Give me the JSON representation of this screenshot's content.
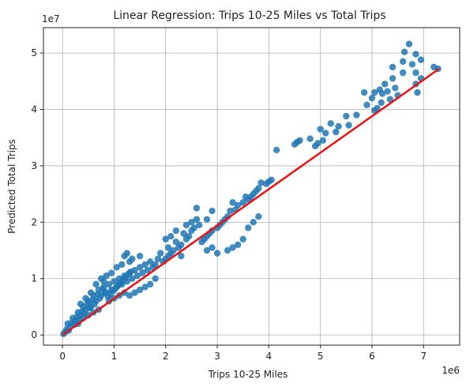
{
  "chart_data": {
    "type": "scatter",
    "title": "Linear Regression: Trips 10-25 Miles vs Total Trips",
    "xlabel": "Trips 10-25 Miles",
    "ylabel": "Predicted Total Trips",
    "x_offset_label": "1e6",
    "y_offset_label": "1e7",
    "xlim": [
      -0.37,
      7.7
    ],
    "ylim": [
      -0.18,
      5.45
    ],
    "x_ticks": [
      0,
      1,
      2,
      3,
      4,
      5,
      6,
      7
    ],
    "x_tick_labels": [
      "0",
      "1",
      "2",
      "3",
      "4",
      "5",
      "6",
      "7"
    ],
    "y_ticks": [
      0,
      1,
      2,
      3,
      4,
      5
    ],
    "y_tick_labels": [
      "0",
      "1",
      "2",
      "3",
      "4",
      "5"
    ],
    "grid": true,
    "colors": {
      "points": "#1f77b4",
      "line": "#ee1111"
    },
    "regression_line": {
      "x": [
        0,
        7.3
      ],
      "y": [
        0,
        4.72
      ]
    },
    "points": [
      [
        6.72,
        5.16
      ],
      [
        6.63,
        5.02
      ],
      [
        6.85,
        4.98
      ],
      [
        6.95,
        4.88
      ],
      [
        7.2,
        4.75
      ],
      [
        7.28,
        4.72
      ],
      [
        6.85,
        4.65
      ],
      [
        6.95,
        4.55
      ],
      [
        6.6,
        4.85
      ],
      [
        6.78,
        4.8
      ],
      [
        6.4,
        4.75
      ],
      [
        6.6,
        4.65
      ],
      [
        6.4,
        4.55
      ],
      [
        6.15,
        4.35
      ],
      [
        6.25,
        4.45
      ],
      [
        6.05,
        4.3
      ],
      [
        6.45,
        4.38
      ],
      [
        6.5,
        4.25
      ],
      [
        6.35,
        4.18
      ],
      [
        6.2,
        4.28
      ],
      [
        6.3,
        4.32
      ],
      [
        6.0,
        4.2
      ],
      [
        6.85,
        4.45
      ],
      [
        6.88,
        4.3
      ],
      [
        5.9,
        4.08
      ],
      [
        5.85,
        4.3
      ],
      [
        6.1,
        4.02
      ],
      [
        6.05,
        3.98
      ],
      [
        6.18,
        4.12
      ],
      [
        5.7,
        3.9
      ],
      [
        5.55,
        3.72
      ],
      [
        5.5,
        3.88
      ],
      [
        5.35,
        3.7
      ],
      [
        5.3,
        3.6
      ],
      [
        5.2,
        3.75
      ],
      [
        5.1,
        3.58
      ],
      [
        5.05,
        3.45
      ],
      [
        4.95,
        3.4
      ],
      [
        5.0,
        3.65
      ],
      [
        4.6,
        3.45
      ],
      [
        4.9,
        3.35
      ],
      [
        4.8,
        3.48
      ],
      [
        4.5,
        3.38
      ],
      [
        4.55,
        3.42
      ],
      [
        4.15,
        3.28
      ],
      [
        4.05,
        2.75
      ],
      [
        4.0,
        2.72
      ],
      [
        3.95,
        2.68
      ],
      [
        3.85,
        2.7
      ],
      [
        3.8,
        2.6
      ],
      [
        3.75,
        2.55
      ],
      [
        3.7,
        2.5
      ],
      [
        3.65,
        2.45
      ],
      [
        3.6,
        2.4
      ],
      [
        3.55,
        2.45
      ],
      [
        3.5,
        2.35
      ],
      [
        3.4,
        2.3
      ],
      [
        3.35,
        2.22
      ],
      [
        3.3,
        2.35
      ],
      [
        3.25,
        2.2
      ],
      [
        3.2,
        2.1
      ],
      [
        3.15,
        2.05
      ],
      [
        3.1,
        2.0
      ],
      [
        3.05,
        1.95
      ],
      [
        3.0,
        1.9
      ],
      [
        2.9,
        1.85
      ],
      [
        2.85,
        1.8
      ],
      [
        2.8,
        1.75
      ],
      [
        2.75,
        1.7
      ],
      [
        2.7,
        1.65
      ],
      [
        3.6,
        1.9
      ],
      [
        3.4,
        1.6
      ],
      [
        3.3,
        1.55
      ],
      [
        3.2,
        1.5
      ],
      [
        3.0,
        1.45
      ],
      [
        2.9,
        1.55
      ],
      [
        2.8,
        1.5
      ],
      [
        3.7,
        2.0
      ],
      [
        3.8,
        2.1
      ],
      [
        3.5,
        1.7
      ],
      [
        2.65,
        1.95
      ],
      [
        2.6,
        2.05
      ],
      [
        2.55,
        1.9
      ],
      [
        2.5,
        1.85
      ],
      [
        2.45,
        1.75
      ],
      [
        2.4,
        1.7
      ],
      [
        2.35,
        1.8
      ],
      [
        2.3,
        1.6
      ],
      [
        2.25,
        1.55
      ],
      [
        2.2,
        1.65
      ],
      [
        2.15,
        1.5
      ],
      [
        2.1,
        1.45
      ],
      [
        2.05,
        1.4
      ],
      [
        2.0,
        1.35
      ],
      [
        1.95,
        1.3
      ],
      [
        1.9,
        1.45
      ],
      [
        1.85,
        1.35
      ],
      [
        1.8,
        1.25
      ],
      [
        1.75,
        1.2
      ],
      [
        1.7,
        1.3
      ],
      [
        2.0,
        1.7
      ],
      [
        2.1,
        1.75
      ],
      [
        2.2,
        1.85
      ],
      [
        2.5,
        2.0
      ],
      [
        2.4,
        1.95
      ],
      [
        2.6,
        2.25
      ],
      [
        2.8,
        2.05
      ],
      [
        2.9,
        2.2
      ],
      [
        2.05,
        1.55
      ],
      [
        2.3,
        1.4
      ],
      [
        1.65,
        1.15
      ],
      [
        1.6,
        1.25
      ],
      [
        1.55,
        1.1
      ],
      [
        1.5,
        1.2
      ],
      [
        1.45,
        1.05
      ],
      [
        1.4,
        1.15
      ],
      [
        1.35,
        1.0
      ],
      [
        1.3,
        1.1
      ],
      [
        1.25,
        0.95
      ],
      [
        1.2,
        1.05
      ],
      [
        1.15,
        0.9
      ],
      [
        1.1,
        1.0
      ],
      [
        1.05,
        0.85
      ],
      [
        1.0,
        0.95
      ],
      [
        0.95,
        0.8
      ],
      [
        0.9,
        0.9
      ],
      [
        0.85,
        0.75
      ],
      [
        0.8,
        0.85
      ],
      [
        0.75,
        0.7
      ],
      [
        0.7,
        0.8
      ],
      [
        1.6,
        0.85
      ],
      [
        1.5,
        0.8
      ],
      [
        1.4,
        0.75
      ],
      [
        1.3,
        0.7
      ],
      [
        1.2,
        0.75
      ],
      [
        1.7,
        0.9
      ],
      [
        1.8,
        1.0
      ],
      [
        1.1,
        0.7
      ],
      [
        1.0,
        0.65
      ],
      [
        0.9,
        0.6
      ],
      [
        1.2,
        1.4
      ],
      [
        1.3,
        1.3
      ],
      [
        1.15,
        1.25
      ],
      [
        1.05,
        1.2
      ],
      [
        0.95,
        1.1
      ],
      [
        0.85,
        1.05
      ],
      [
        1.25,
        1.45
      ],
      [
        0.8,
        0.95
      ],
      [
        1.35,
        1.35
      ],
      [
        1.5,
        1.4
      ],
      [
        0.65,
        0.6
      ],
      [
        0.6,
        0.7
      ],
      [
        0.55,
        0.5
      ],
      [
        0.5,
        0.6
      ],
      [
        0.45,
        0.45
      ],
      [
        0.4,
        0.5
      ],
      [
        0.35,
        0.35
      ],
      [
        0.3,
        0.4
      ],
      [
        0.25,
        0.25
      ],
      [
        0.2,
        0.3
      ],
      [
        0.15,
        0.15
      ],
      [
        0.1,
        0.2
      ],
      [
        0.05,
        0.05
      ],
      [
        0.02,
        0.02
      ],
      [
        0.08,
        0.1
      ],
      [
        0.12,
        0.08
      ],
      [
        0.18,
        0.22
      ],
      [
        0.22,
        0.18
      ],
      [
        0.28,
        0.32
      ],
      [
        0.32,
        0.28
      ],
      [
        0.38,
        0.42
      ],
      [
        0.42,
        0.38
      ],
      [
        0.48,
        0.55
      ],
      [
        0.52,
        0.48
      ],
      [
        0.58,
        0.62
      ],
      [
        0.62,
        0.55
      ],
      [
        0.68,
        0.72
      ],
      [
        0.72,
        0.65
      ],
      [
        0.78,
        0.82
      ],
      [
        0.82,
        0.75
      ],
      [
        0.5,
        0.35
      ],
      [
        0.6,
        0.4
      ],
      [
        0.7,
        0.45
      ],
      [
        0.4,
        0.3
      ],
      [
        0.3,
        0.2
      ],
      [
        0.55,
        0.75
      ],
      [
        0.45,
        0.65
      ],
      [
        0.35,
        0.55
      ],
      [
        0.65,
        0.9
      ],
      [
        0.75,
        1.0
      ],
      [
        0.88,
        0.68
      ],
      [
        0.92,
        0.72
      ],
      [
        0.98,
        0.78
      ],
      [
        1.02,
        0.82
      ],
      [
        1.08,
        0.88
      ],
      [
        1.12,
        0.92
      ],
      [
        1.18,
        0.98
      ],
      [
        1.22,
        1.02
      ],
      [
        1.28,
        1.08
      ],
      [
        1.32,
        1.12
      ]
    ]
  }
}
